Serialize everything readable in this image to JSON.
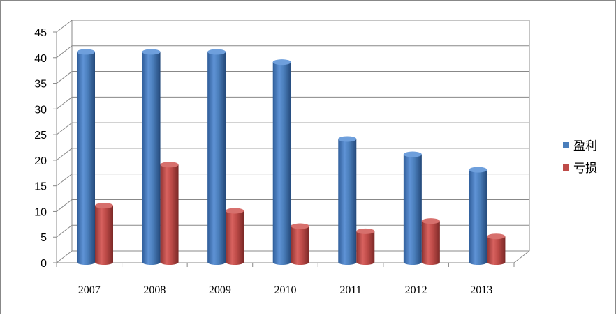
{
  "chart_data": {
    "type": "bar",
    "categories": [
      "2007",
      "2008",
      "2009",
      "2010",
      "2011",
      "2012",
      "2013"
    ],
    "series": [
      {
        "name": "盈利",
        "values": [
          41,
          41,
          41,
          39,
          24,
          21,
          18
        ],
        "color": "#4a7ebb"
      },
      {
        "name": "亏损",
        "values": [
          11,
          19,
          10,
          7,
          6,
          8,
          5
        ],
        "color": "#be4b48"
      }
    ],
    "ylim": [
      0,
      45
    ],
    "yticks": [
      0,
      5,
      10,
      15,
      20,
      25,
      30,
      35,
      40,
      45
    ],
    "grid": true,
    "style": "3d-cylinder",
    "legend_position": "right"
  }
}
